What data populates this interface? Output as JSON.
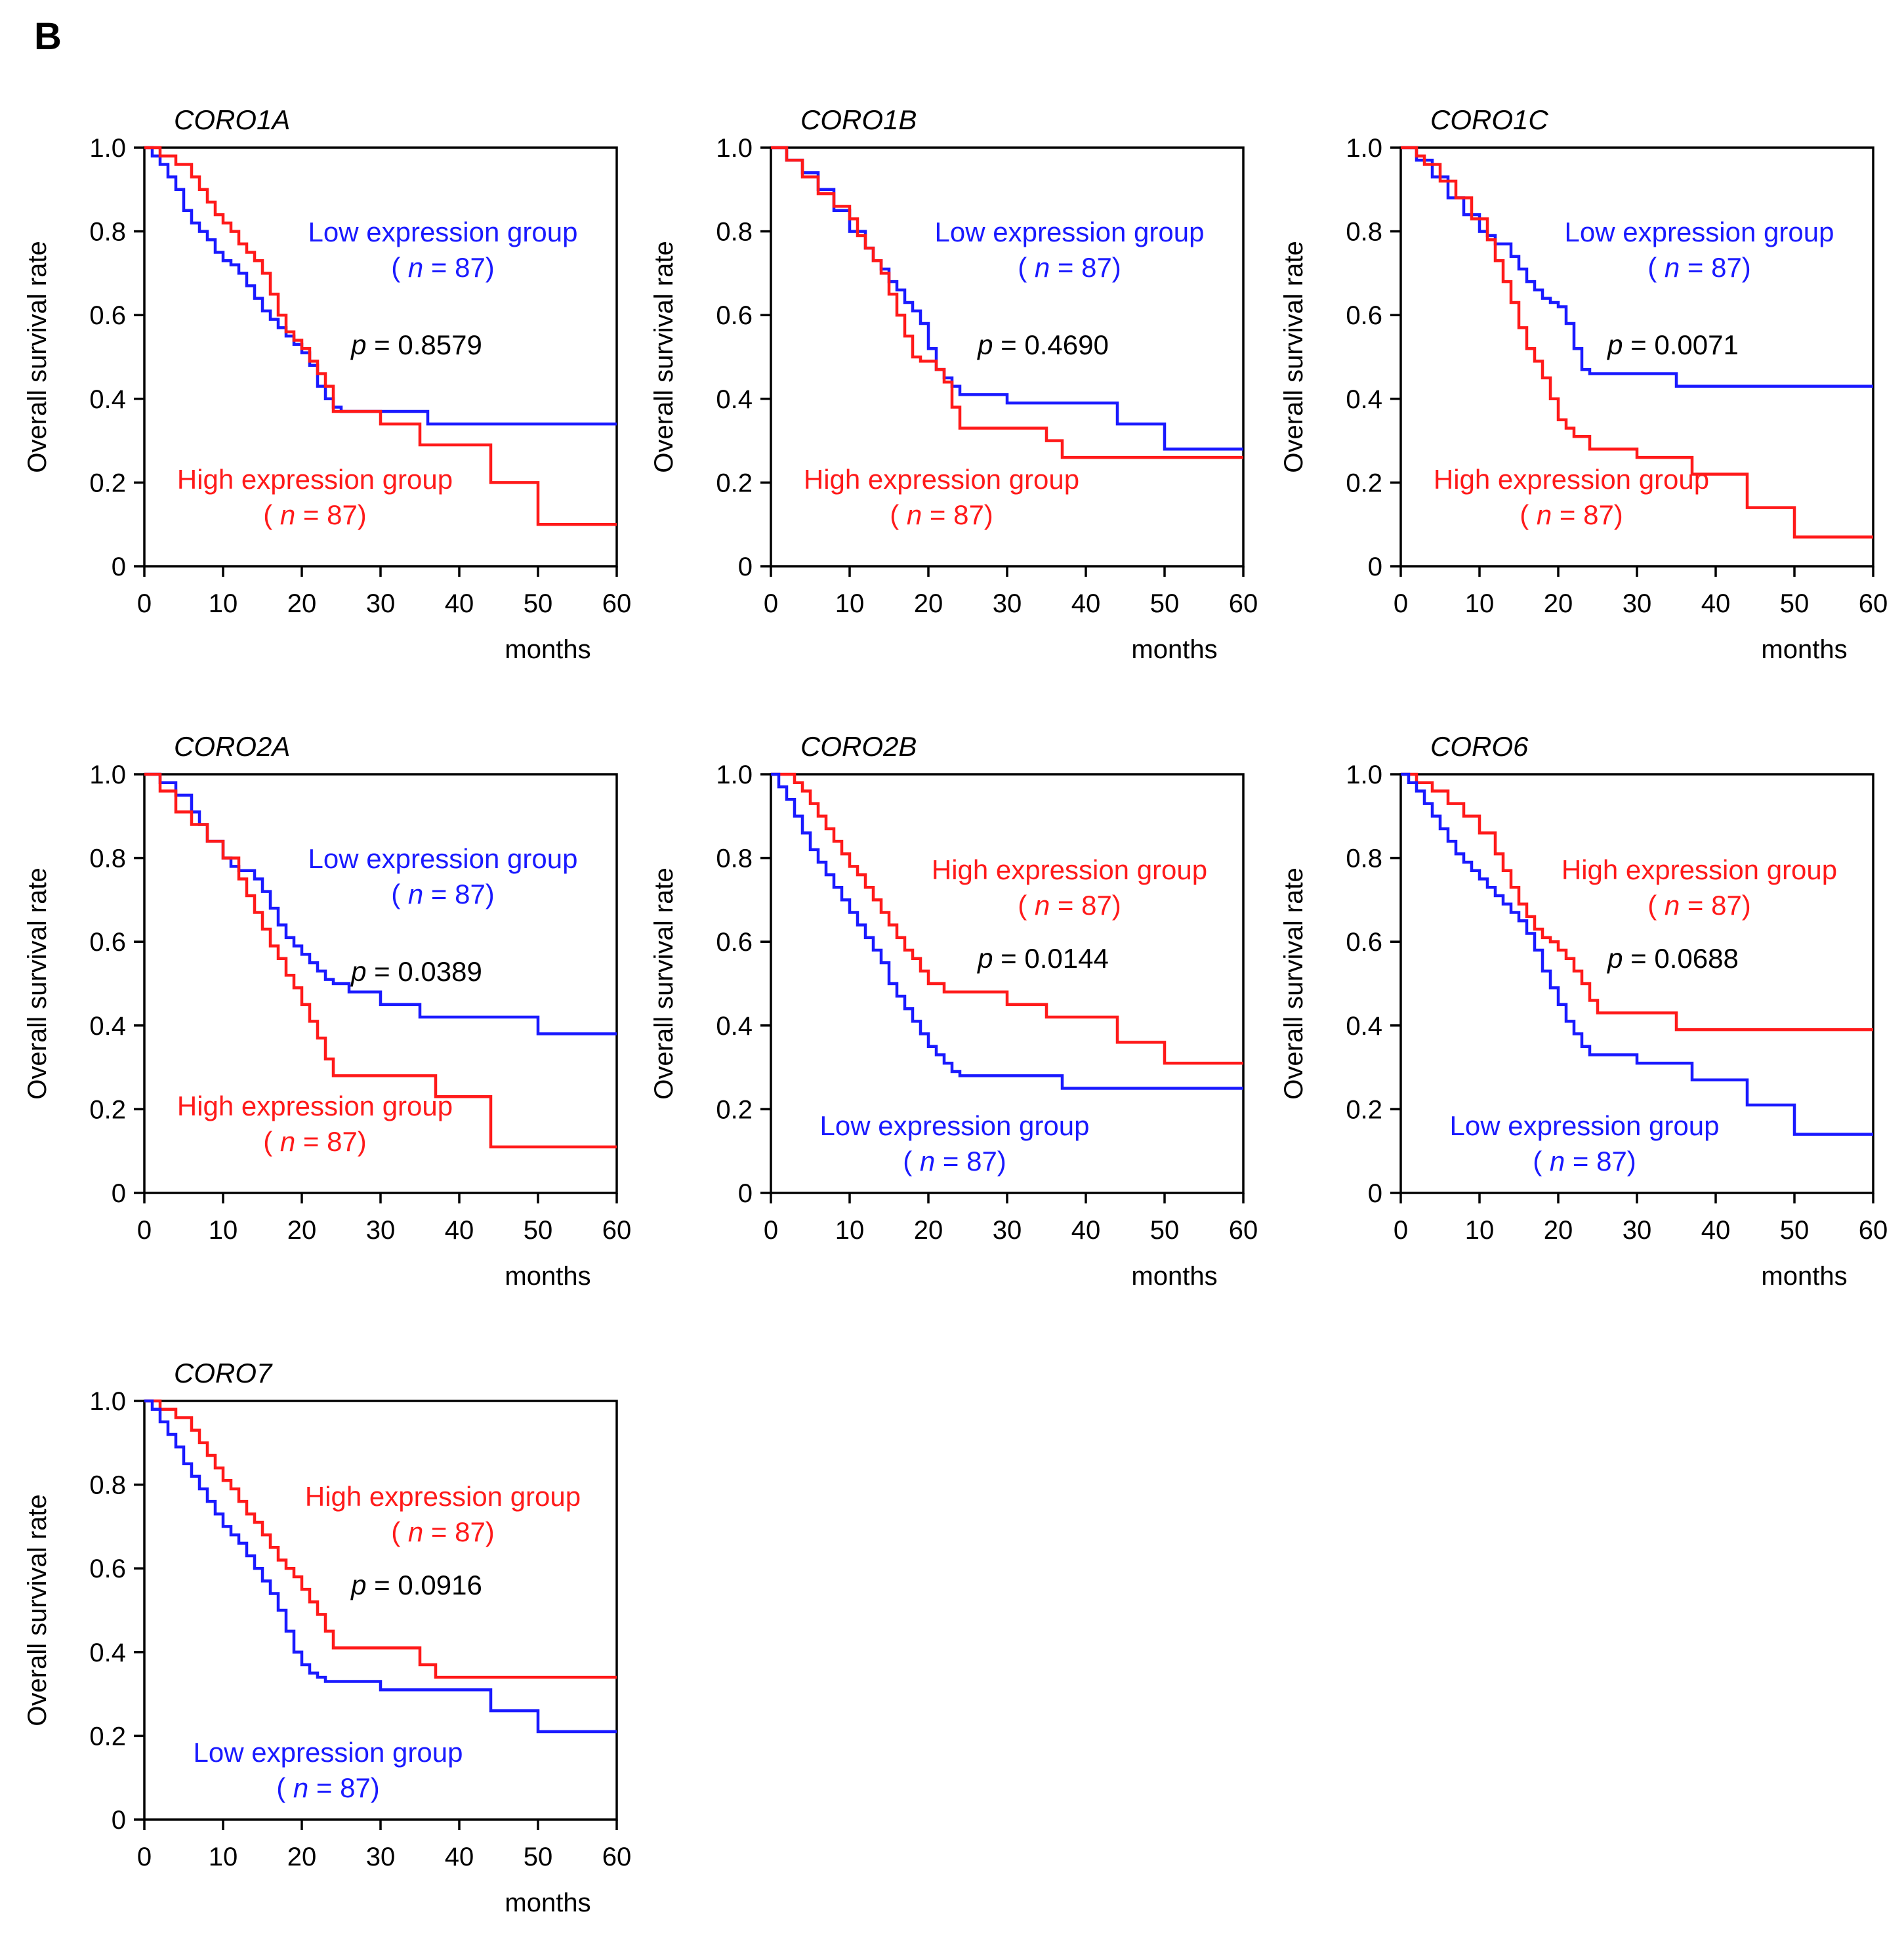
{
  "panel_label": "B",
  "colors": {
    "low": "#1a1aff",
    "high": "#ff1a1a",
    "axis": "#000000",
    "text": "#000000"
  },
  "chart_data": [
    {
      "type": "line",
      "title": "CORO1A",
      "xlabel": "months",
      "ylabel": "Overall survival rate",
      "xlim": [
        0,
        60
      ],
      "ylim": [
        0,
        1
      ],
      "xticks": [
        "0",
        "10",
        "20",
        "30",
        "40",
        "50",
        "60"
      ],
      "yticks": [
        "0",
        "0.2",
        "0.4",
        "0.6",
        "0.8",
        "1.0"
      ],
      "pvalue": "0.8579",
      "label_order": [
        "low",
        "high"
      ],
      "series": [
        {
          "name": "Low expression group",
          "key": "low",
          "n": "87",
          "x": [
            0,
            1,
            2,
            3,
            4,
            5,
            6,
            7,
            8,
            9,
            10,
            11,
            12,
            13,
            14,
            15,
            16,
            17,
            18,
            19,
            20,
            21,
            22,
            23,
            24,
            25,
            35,
            36,
            60
          ],
          "y": [
            1.0,
            0.98,
            0.96,
            0.93,
            0.9,
            0.85,
            0.82,
            0.8,
            0.78,
            0.75,
            0.73,
            0.72,
            0.7,
            0.67,
            0.64,
            0.61,
            0.59,
            0.57,
            0.55,
            0.53,
            0.51,
            0.48,
            0.43,
            0.4,
            0.38,
            0.37,
            0.37,
            0.34,
            0.34
          ]
        },
        {
          "name": "High expression group",
          "key": "high",
          "n": "87",
          "x": [
            0,
            2,
            4,
            6,
            7,
            8,
            9,
            10,
            11,
            12,
            13,
            14,
            15,
            16,
            17,
            18,
            19,
            20,
            21,
            22,
            23,
            24,
            30,
            35,
            44,
            50,
            60
          ],
          "y": [
            1.0,
            0.98,
            0.96,
            0.93,
            0.9,
            0.87,
            0.84,
            0.82,
            0.8,
            0.77,
            0.75,
            0.73,
            0.7,
            0.65,
            0.6,
            0.56,
            0.54,
            0.52,
            0.49,
            0.46,
            0.43,
            0.37,
            0.34,
            0.29,
            0.2,
            0.1,
            0.1
          ]
        }
      ]
    },
    {
      "type": "line",
      "title": "CORO1B",
      "xlabel": "months",
      "ylabel": "Overall survival rate",
      "xlim": [
        0,
        60
      ],
      "ylim": [
        0,
        1
      ],
      "xticks": [
        "0",
        "10",
        "20",
        "30",
        "40",
        "50",
        "60"
      ],
      "yticks": [
        "0",
        "0.2",
        "0.4",
        "0.6",
        "0.8",
        "1.0"
      ],
      "pvalue": "0.4690",
      "label_order": [
        "low",
        "high"
      ],
      "series": [
        {
          "name": "Low expression group",
          "key": "low",
          "n": "87",
          "x": [
            0,
            2,
            4,
            6,
            8,
            10,
            12,
            13,
            14,
            15,
            16,
            17,
            18,
            19,
            20,
            21,
            22,
            23,
            24,
            30,
            44,
            50,
            60
          ],
          "y": [
            1.0,
            0.97,
            0.94,
            0.9,
            0.85,
            0.8,
            0.76,
            0.73,
            0.71,
            0.68,
            0.66,
            0.63,
            0.61,
            0.58,
            0.52,
            0.47,
            0.45,
            0.43,
            0.41,
            0.39,
            0.34,
            0.28,
            0.28
          ]
        },
        {
          "name": "High expression group",
          "key": "high",
          "n": "87",
          "x": [
            0,
            2,
            4,
            6,
            8,
            10,
            11,
            12,
            13,
            14,
            15,
            16,
            17,
            18,
            19,
            20,
            21,
            22,
            23,
            24,
            35,
            37,
            60
          ],
          "y": [
            1.0,
            0.97,
            0.93,
            0.89,
            0.86,
            0.83,
            0.79,
            0.76,
            0.73,
            0.7,
            0.65,
            0.6,
            0.55,
            0.5,
            0.49,
            0.49,
            0.47,
            0.44,
            0.38,
            0.33,
            0.3,
            0.26,
            0.26
          ]
        }
      ]
    },
    {
      "type": "line",
      "title": "CORO1C",
      "xlabel": "months",
      "ylabel": "Overall survival rate",
      "xlim": [
        0,
        60
      ],
      "ylim": [
        0,
        1
      ],
      "xticks": [
        "0",
        "10",
        "20",
        "30",
        "40",
        "50",
        "60"
      ],
      "yticks": [
        "0",
        "0.2",
        "0.4",
        "0.6",
        "0.8",
        "1.0"
      ],
      "pvalue": "0.0071",
      "label_order": [
        "low",
        "high"
      ],
      "series": [
        {
          "name": "Low expression group",
          "key": "low",
          "n": "87",
          "x": [
            0,
            2,
            4,
            6,
            8,
            10,
            11,
            12,
            14,
            15,
            16,
            17,
            18,
            19,
            20,
            21,
            22,
            23,
            24,
            35,
            60
          ],
          "y": [
            1.0,
            0.97,
            0.93,
            0.88,
            0.84,
            0.8,
            0.79,
            0.77,
            0.74,
            0.71,
            0.68,
            0.66,
            0.64,
            0.63,
            0.62,
            0.58,
            0.52,
            0.47,
            0.46,
            0.43,
            0.43
          ]
        },
        {
          "name": "High expression group",
          "key": "high",
          "n": "87",
          "x": [
            0,
            2,
            3,
            5,
            7,
            9,
            11,
            12,
            13,
            14,
            15,
            16,
            17,
            18,
            19,
            20,
            21,
            22,
            24,
            30,
            37,
            44,
            50,
            60
          ],
          "y": [
            1.0,
            0.98,
            0.96,
            0.92,
            0.88,
            0.83,
            0.78,
            0.73,
            0.68,
            0.63,
            0.57,
            0.52,
            0.49,
            0.45,
            0.4,
            0.35,
            0.33,
            0.31,
            0.28,
            0.26,
            0.22,
            0.14,
            0.07,
            0.07
          ]
        }
      ]
    },
    {
      "type": "line",
      "title": "CORO2A",
      "xlabel": "months",
      "ylabel": "Overall survival rate",
      "xlim": [
        0,
        60
      ],
      "ylim": [
        0,
        1
      ],
      "xticks": [
        "0",
        "10",
        "20",
        "30",
        "40",
        "50",
        "60"
      ],
      "yticks": [
        "0",
        "0.2",
        "0.4",
        "0.6",
        "0.8",
        "1.0"
      ],
      "pvalue": "0.0389",
      "label_order": [
        "low",
        "high"
      ],
      "series": [
        {
          "name": "Low expression group",
          "key": "low",
          "n": "87",
          "x": [
            0,
            2,
            4,
            6,
            7,
            8,
            10,
            11,
            12,
            14,
            15,
            16,
            17,
            18,
            19,
            20,
            21,
            22,
            23,
            24,
            26,
            30,
            35,
            50,
            60
          ],
          "y": [
            1.0,
            0.98,
            0.95,
            0.91,
            0.88,
            0.84,
            0.8,
            0.78,
            0.77,
            0.75,
            0.72,
            0.68,
            0.64,
            0.61,
            0.59,
            0.57,
            0.55,
            0.53,
            0.51,
            0.5,
            0.48,
            0.45,
            0.42,
            0.38,
            0.38
          ]
        },
        {
          "name": "High expression group",
          "key": "high",
          "n": "87",
          "x": [
            0,
            2,
            4,
            6,
            8,
            10,
            12,
            13,
            14,
            15,
            16,
            17,
            18,
            19,
            20,
            21,
            22,
            23,
            24,
            37,
            44,
            60
          ],
          "y": [
            1.0,
            0.96,
            0.91,
            0.88,
            0.84,
            0.8,
            0.75,
            0.71,
            0.67,
            0.63,
            0.59,
            0.56,
            0.52,
            0.49,
            0.45,
            0.41,
            0.37,
            0.32,
            0.28,
            0.23,
            0.11,
            0.11
          ]
        }
      ]
    },
    {
      "type": "line",
      "title": "CORO2B",
      "xlabel": "months",
      "ylabel": "Overall survival rate",
      "xlim": [
        0,
        60
      ],
      "ylim": [
        0,
        1
      ],
      "xticks": [
        "0",
        "10",
        "20",
        "30",
        "40",
        "50",
        "60"
      ],
      "yticks": [
        "0",
        "0.2",
        "0.4",
        "0.6",
        "0.8",
        "1.0"
      ],
      "pvalue": "0.0144",
      "label_order": [
        "high",
        "low"
      ],
      "series": [
        {
          "name": "High expression group",
          "key": "high",
          "n": "87",
          "x": [
            0,
            3,
            4,
            5,
            6,
            7,
            8,
            9,
            10,
            11,
            12,
            13,
            14,
            15,
            16,
            17,
            18,
            19,
            20,
            22,
            23,
            30,
            35,
            44,
            50,
            60
          ],
          "y": [
            1.0,
            0.98,
            0.96,
            0.93,
            0.9,
            0.87,
            0.84,
            0.81,
            0.78,
            0.76,
            0.73,
            0.7,
            0.67,
            0.64,
            0.61,
            0.58,
            0.56,
            0.53,
            0.5,
            0.48,
            0.48,
            0.45,
            0.42,
            0.36,
            0.31,
            0.31
          ]
        },
        {
          "name": "Low expression group",
          "key": "low",
          "n": "87",
          "x": [
            0,
            1,
            2,
            3,
            4,
            5,
            6,
            7,
            8,
            9,
            10,
            11,
            12,
            13,
            14,
            15,
            16,
            17,
            18,
            19,
            20,
            21,
            22,
            23,
            24,
            37,
            60
          ],
          "y": [
            1.0,
            0.97,
            0.94,
            0.9,
            0.86,
            0.82,
            0.79,
            0.76,
            0.73,
            0.7,
            0.67,
            0.64,
            0.61,
            0.58,
            0.55,
            0.5,
            0.47,
            0.44,
            0.41,
            0.38,
            0.35,
            0.33,
            0.31,
            0.29,
            0.28,
            0.25,
            0.25
          ]
        }
      ]
    },
    {
      "type": "line",
      "title": "CORO6",
      "xlabel": "months",
      "ylabel": "Overall survival rate",
      "xlim": [
        0,
        60
      ],
      "ylim": [
        0,
        1
      ],
      "xticks": [
        "0",
        "10",
        "20",
        "30",
        "40",
        "50",
        "60"
      ],
      "yticks": [
        "0",
        "0.2",
        "0.4",
        "0.6",
        "0.8",
        "1.0"
      ],
      "pvalue": "0.0688",
      "label_order": [
        "high",
        "low"
      ],
      "series": [
        {
          "name": "High expression group",
          "key": "high",
          "n": "87",
          "x": [
            0,
            2,
            4,
            6,
            8,
            10,
            12,
            13,
            14,
            15,
            16,
            17,
            18,
            19,
            20,
            21,
            22,
            23,
            24,
            25,
            35,
            60
          ],
          "y": [
            1.0,
            0.98,
            0.96,
            0.93,
            0.9,
            0.86,
            0.81,
            0.77,
            0.73,
            0.69,
            0.66,
            0.63,
            0.61,
            0.6,
            0.58,
            0.56,
            0.53,
            0.5,
            0.46,
            0.43,
            0.39,
            0.39
          ]
        },
        {
          "name": "Low expression group",
          "key": "low",
          "n": "87",
          "x": [
            0,
            1,
            2,
            3,
            4,
            5,
            6,
            7,
            8,
            9,
            10,
            11,
            12,
            13,
            14,
            15,
            16,
            17,
            18,
            19,
            20,
            21,
            22,
            23,
            24,
            30,
            37,
            44,
            50,
            60
          ],
          "y": [
            1.0,
            0.98,
            0.96,
            0.93,
            0.9,
            0.87,
            0.84,
            0.81,
            0.79,
            0.77,
            0.75,
            0.73,
            0.71,
            0.69,
            0.67,
            0.65,
            0.62,
            0.58,
            0.53,
            0.49,
            0.45,
            0.41,
            0.38,
            0.35,
            0.33,
            0.31,
            0.27,
            0.21,
            0.14,
            0.14
          ]
        }
      ]
    },
    {
      "type": "line",
      "title": "CORO7",
      "xlabel": "months",
      "ylabel": "Overall survival rate",
      "xlim": [
        0,
        60
      ],
      "ylim": [
        0,
        1
      ],
      "xticks": [
        "0",
        "10",
        "20",
        "30",
        "40",
        "50",
        "60"
      ],
      "yticks": [
        "0",
        "0.2",
        "0.4",
        "0.6",
        "0.8",
        "1.0"
      ],
      "pvalue": "0.0916",
      "label_order": [
        "high",
        "low"
      ],
      "series": [
        {
          "name": "High expression group",
          "key": "high",
          "n": "87",
          "x": [
            0,
            2,
            4,
            6,
            7,
            8,
            9,
            10,
            11,
            12,
            13,
            14,
            15,
            16,
            17,
            18,
            19,
            20,
            21,
            22,
            23,
            24,
            35,
            37,
            60
          ],
          "y": [
            1.0,
            0.98,
            0.96,
            0.93,
            0.9,
            0.87,
            0.84,
            0.81,
            0.79,
            0.76,
            0.73,
            0.71,
            0.68,
            0.65,
            0.62,
            0.6,
            0.58,
            0.55,
            0.52,
            0.49,
            0.45,
            0.41,
            0.37,
            0.34,
            0.34
          ]
        },
        {
          "name": "Low expression group",
          "key": "low",
          "n": "87",
          "x": [
            0,
            1,
            2,
            3,
            4,
            5,
            6,
            7,
            8,
            9,
            10,
            11,
            12,
            13,
            14,
            15,
            16,
            17,
            18,
            19,
            20,
            21,
            22,
            23,
            24,
            30,
            44,
            50,
            60
          ],
          "y": [
            1.0,
            0.98,
            0.95,
            0.92,
            0.89,
            0.85,
            0.82,
            0.79,
            0.76,
            0.73,
            0.7,
            0.68,
            0.66,
            0.63,
            0.6,
            0.57,
            0.54,
            0.5,
            0.45,
            0.4,
            0.37,
            0.35,
            0.34,
            0.33,
            0.33,
            0.31,
            0.26,
            0.21,
            0.21
          ]
        }
      ]
    }
  ]
}
